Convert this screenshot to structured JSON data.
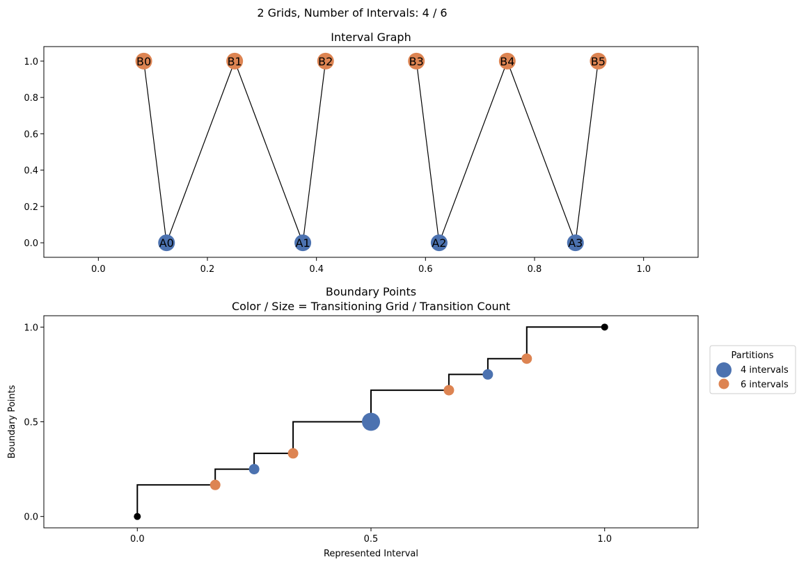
{
  "suptitle": "2 Grids, Number of Intervals: 4 / 6",
  "colors": {
    "grid_a": "#4c72b0",
    "grid_b": "#dd8452",
    "endpoint": "#000000",
    "edge": "#000000"
  },
  "chart_data": [
    {
      "type": "network",
      "title": "Interval Graph",
      "xlim": [
        -0.1,
        1.1
      ],
      "ylim": [
        -0.08,
        1.08
      ],
      "xticks": [
        0.0,
        0.2,
        0.4,
        0.6,
        0.8,
        1.0
      ],
      "xtick_labels": [
        "0.0",
        "0.2",
        "0.4",
        "0.6",
        "0.8",
        "1.0"
      ],
      "yticks": [
        0.0,
        0.2,
        0.4,
        0.6,
        0.8,
        1.0
      ],
      "ytick_labels": [
        "0.0",
        "0.2",
        "0.4",
        "0.6",
        "0.8",
        "1.0"
      ],
      "nodes": [
        {
          "id": "A0",
          "x": 0.125,
          "y": 0,
          "group": "A"
        },
        {
          "id": "A1",
          "x": 0.375,
          "y": 0,
          "group": "A"
        },
        {
          "id": "A2",
          "x": 0.625,
          "y": 0,
          "group": "A"
        },
        {
          "id": "A3",
          "x": 0.875,
          "y": 0,
          "group": "A"
        },
        {
          "id": "B0",
          "x": 0.0833,
          "y": 1,
          "group": "B"
        },
        {
          "id": "B1",
          "x": 0.25,
          "y": 1,
          "group": "B"
        },
        {
          "id": "B2",
          "x": 0.4167,
          "y": 1,
          "group": "B"
        },
        {
          "id": "B3",
          "x": 0.5833,
          "y": 1,
          "group": "B"
        },
        {
          "id": "B4",
          "x": 0.75,
          "y": 1,
          "group": "B"
        },
        {
          "id": "B5",
          "x": 0.9167,
          "y": 1,
          "group": "B"
        }
      ],
      "edges": [
        [
          "B0",
          "A0"
        ],
        [
          "A0",
          "B1"
        ],
        [
          "B1",
          "A1"
        ],
        [
          "A1",
          "B2"
        ],
        [
          "B3",
          "A2"
        ],
        [
          "A2",
          "B4"
        ],
        [
          "B4",
          "A3"
        ],
        [
          "A3",
          "B5"
        ]
      ]
    },
    {
      "type": "scatter",
      "title": "Boundary Points",
      "subtitle": "Color / Size = Transitioning Grid / Transition Count",
      "xlabel": "Represented Interval",
      "ylabel": "Boundary Points",
      "xlim": [
        -0.2,
        1.2
      ],
      "ylim": [
        -0.06,
        1.06
      ],
      "xticks": [
        0.0,
        0.5,
        1.0
      ],
      "xtick_labels": [
        "0.0",
        "0.5",
        "1.0"
      ],
      "yticks": [
        0.0,
        0.5,
        1.0
      ],
      "ytick_labels": [
        "0.0",
        "0.5",
        "1.0"
      ],
      "step_line": [
        [
          0,
          0
        ],
        [
          0,
          0.1667
        ],
        [
          0.1667,
          0.1667
        ],
        [
          0.1667,
          0.25
        ],
        [
          0.25,
          0.25
        ],
        [
          0.25,
          0.3333
        ],
        [
          0.3333,
          0.3333
        ],
        [
          0.3333,
          0.5
        ],
        [
          0.5,
          0.5
        ],
        [
          0.5,
          0.6667
        ],
        [
          0.6667,
          0.6667
        ],
        [
          0.6667,
          0.75
        ],
        [
          0.75,
          0.75
        ],
        [
          0.75,
          0.8333
        ],
        [
          0.8333,
          0.8333
        ],
        [
          0.8333,
          1.0
        ],
        [
          1.0,
          1.0
        ]
      ],
      "points": [
        {
          "x": 0.0,
          "y": 0.0,
          "series": "endpoint",
          "count": 1
        },
        {
          "x": 0.1667,
          "y": 0.1667,
          "series": "6 intervals",
          "count": 1
        },
        {
          "x": 0.25,
          "y": 0.25,
          "series": "4 intervals",
          "count": 1
        },
        {
          "x": 0.3333,
          "y": 0.3333,
          "series": "6 intervals",
          "count": 1
        },
        {
          "x": 0.5,
          "y": 0.5,
          "series": "4 intervals",
          "count": 2
        },
        {
          "x": 0.6667,
          "y": 0.6667,
          "series": "6 intervals",
          "count": 1
        },
        {
          "x": 0.75,
          "y": 0.75,
          "series": "4 intervals",
          "count": 1
        },
        {
          "x": 0.8333,
          "y": 0.8333,
          "series": "6 intervals",
          "count": 1
        },
        {
          "x": 1.0,
          "y": 1.0,
          "series": "endpoint",
          "count": 1
        }
      ],
      "legend": {
        "title": "Partitions",
        "placement": "outside right",
        "entries": [
          {
            "label": "4 intervals",
            "series": "4 intervals"
          },
          {
            "label": "6 intervals",
            "series": "6 intervals"
          }
        ]
      }
    }
  ]
}
